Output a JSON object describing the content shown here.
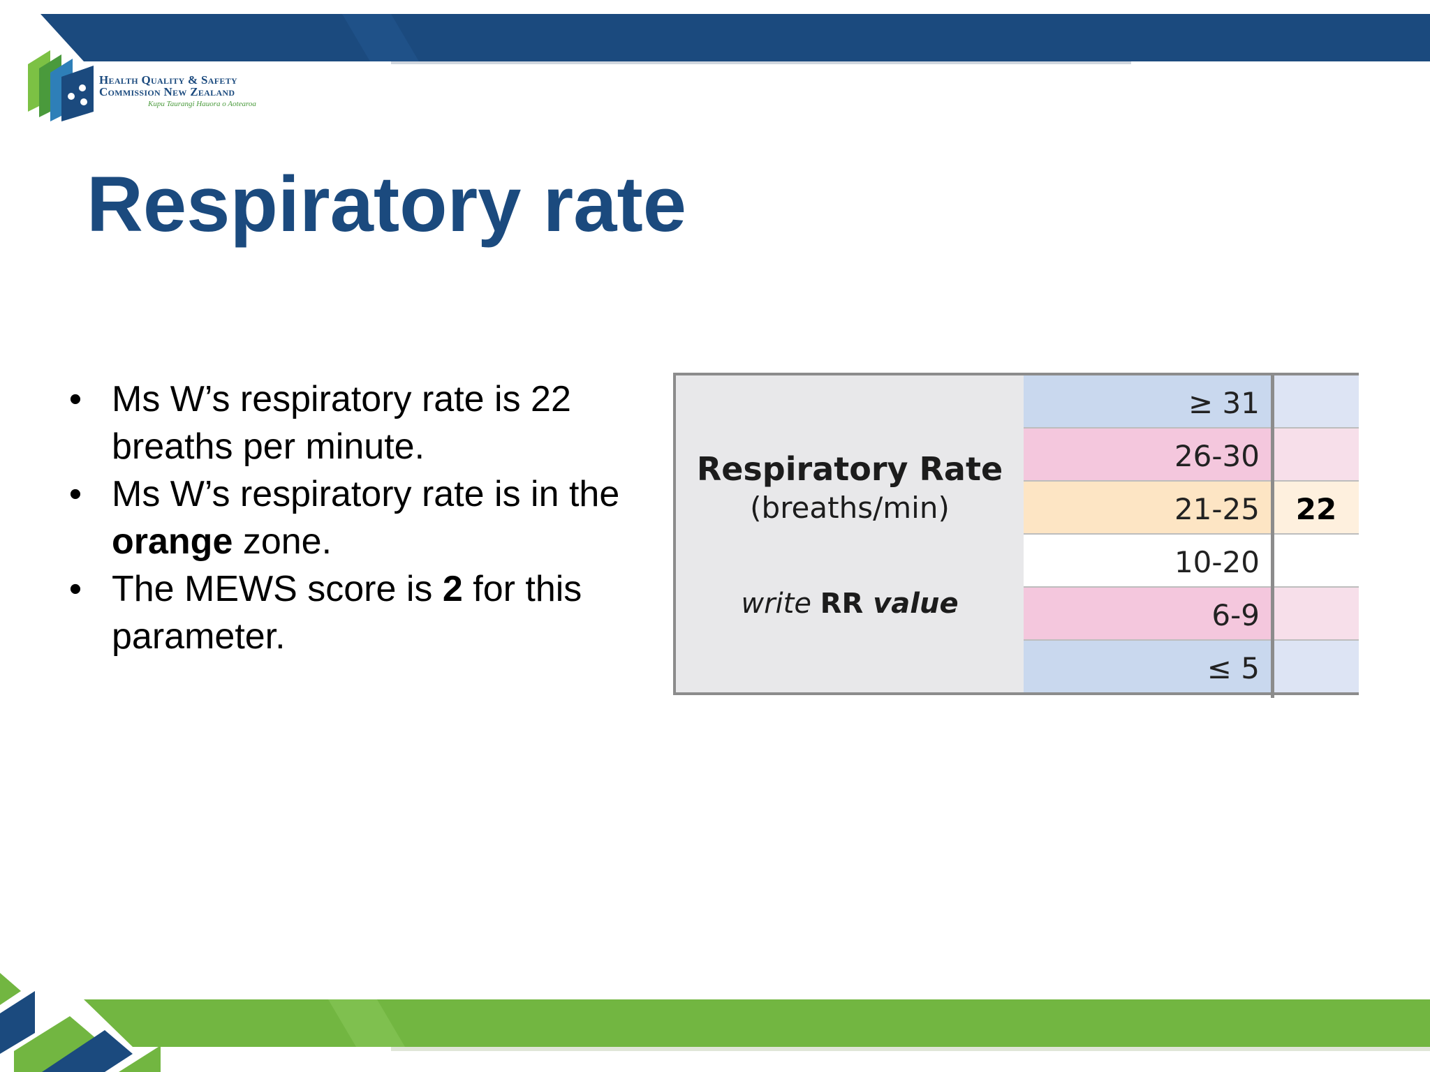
{
  "logo": {
    "line1": "Health Quality & Safety",
    "line2": "Commission New Zealand",
    "subtitle": "Kupu Taurangi Hauora o Aotearoa"
  },
  "slide": {
    "title": "Respiratory rate",
    "bullets": [
      {
        "pre": "Ms W’s respiratory rate is 22 breaths per minute.",
        "bold": "",
        "post": ""
      },
      {
        "pre": "Ms W’s respiratory rate is in the ",
        "bold": "orange",
        "post": " zone."
      },
      {
        "pre": "The MEWS score is ",
        "bold": "2",
        "post": " for this parameter."
      }
    ]
  },
  "table": {
    "label": "Respiratory Rate",
    "unit": "(breaths/min)",
    "write_pre": "write ",
    "write_bold": "RR",
    "write_italic": " value",
    "rows": [
      {
        "range": "≥  31",
        "value": "",
        "range_color": "#c9d8ee",
        "value_color": "#dde4f4"
      },
      {
        "range": "26-30",
        "value": "",
        "range_color": "#f4c7dd",
        "value_color": "#f7dfea"
      },
      {
        "range": "21-25",
        "value": "22",
        "range_color": "#fde5c4",
        "value_color": "#fef0de"
      },
      {
        "range": "10-20",
        "value": "",
        "range_color": "#ffffff",
        "value_color": "#ffffff"
      },
      {
        "range": "6-9",
        "value": "",
        "range_color": "#f4c7dd",
        "value_color": "#f7dfea"
      },
      {
        "range": "≤  5",
        "value": "",
        "range_color": "#c9d8ee",
        "value_color": "#dde4f4"
      }
    ]
  },
  "colors": {
    "brand_blue": "#1b4a7e",
    "brand_green": "#72b641",
    "table_border": "#8c8c8c"
  }
}
